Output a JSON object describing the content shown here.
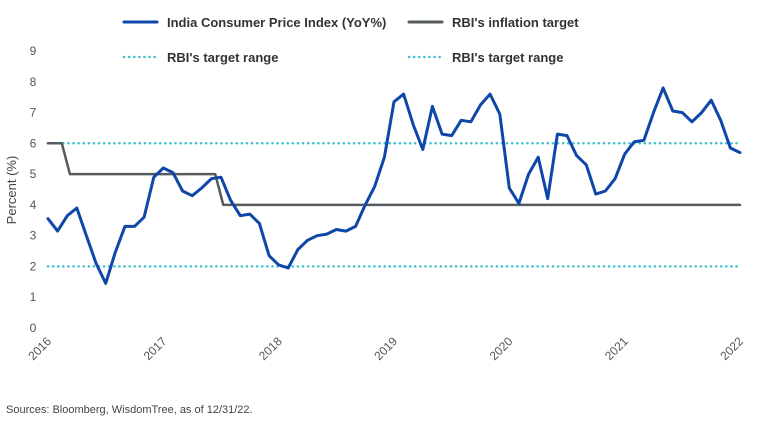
{
  "chart_data": {
    "type": "line",
    "title": "",
    "xlabel": "",
    "ylabel": "Percent (%)",
    "ylim": [
      0,
      9
    ],
    "yticks": [
      0,
      1,
      2,
      3,
      4,
      5,
      6,
      7,
      8,
      9
    ],
    "xlim": [
      2016,
      2022
    ],
    "xticks": [
      "2016",
      "2017",
      "2018",
      "2019",
      "2020",
      "2021",
      "2022"
    ],
    "grid": false,
    "legend_position": "top",
    "legend": [
      {
        "label": "India Consumer Price Index (YoY%)",
        "style": "solid",
        "color": "#0f47a8"
      },
      {
        "label": "RBI's inflation target",
        "style": "solid",
        "color": "#555b5e"
      },
      {
        "label": "RBI's target range",
        "style": "dotted",
        "color": "#3ec1cf"
      },
      {
        "label": "RBI's target range",
        "style": "dotted",
        "color": "#3ec1cf"
      }
    ],
    "series": [
      {
        "color": "#0f47a8",
        "style": "solid",
        "x": [
          2016.0,
          2016.083,
          2016.167,
          2016.25,
          2016.333,
          2016.417,
          2016.5,
          2016.583,
          2016.667,
          2016.75,
          2016.833,
          2016.917,
          2017.0,
          2017.083,
          2017.167,
          2017.25,
          2017.333,
          2017.417,
          2017.5,
          2017.583,
          2017.667,
          2017.75,
          2017.833,
          2017.917,
          2018.0,
          2018.083,
          2018.167,
          2018.25,
          2018.333,
          2018.417,
          2018.5,
          2018.583,
          2018.667,
          2018.75,
          2018.833,
          2018.917,
          2019.0,
          2019.083,
          2019.167,
          2019.25,
          2019.333,
          2019.417,
          2019.5,
          2019.583,
          2019.667,
          2019.75,
          2019.833,
          2019.917,
          2020.0,
          2020.083,
          2020.167,
          2020.25,
          2020.333,
          2020.417,
          2020.5,
          2020.583,
          2020.667,
          2020.75,
          2020.833,
          2020.917,
          2021.0,
          2021.083,
          2021.167,
          2021.25,
          2021.333,
          2021.417,
          2021.5,
          2021.583,
          2021.667,
          2021.75,
          2021.833,
          2021.917,
          2022.0
        ],
        "values": [
          3.55,
          3.15,
          3.65,
          3.9,
          3.0,
          2.1,
          1.45,
          2.45,
          3.3,
          3.3,
          3.6,
          4.9,
          5.2,
          5.05,
          4.45,
          4.3,
          4.55,
          4.85,
          4.9,
          4.15,
          3.65,
          3.7,
          3.4,
          2.35,
          2.05,
          1.95,
          2.55,
          2.85,
          3.0,
          3.05,
          3.2,
          3.15,
          3.3,
          4.0,
          4.6,
          5.55,
          7.35,
          7.6,
          6.6,
          5.8,
          7.2,
          6.3,
          6.25,
          6.75,
          6.7,
          7.25,
          7.6,
          6.95,
          4.55,
          4.05,
          5.0,
          5.55,
          4.2,
          6.3,
          6.25,
          5.6,
          5.3,
          4.35,
          4.45,
          4.85,
          5.65,
          6.05,
          6.1,
          7.0,
          7.8,
          7.05,
          7.0,
          6.7,
          7.0,
          7.4,
          6.75,
          5.85,
          5.7
        ]
      },
      {
        "color": "#555b5e",
        "style": "solid",
        "x": [
          2016.0,
          2016.12,
          2016.19,
          2017.45,
          2017.52,
          2022.0
        ],
        "values": [
          6,
          6,
          5,
          5,
          4,
          4
        ]
      },
      {
        "color": "#3ec1cf",
        "style": "dotted",
        "x": [
          2016.0,
          2022.0
        ],
        "values": [
          6,
          6
        ]
      },
      {
        "color": "#3ec1cf",
        "style": "dotted",
        "x": [
          2016.0,
          2022.0
        ],
        "values": [
          2,
          2
        ]
      }
    ]
  },
  "source_note": "Sources: Bloomberg, WisdomTree, as of 12/31/22."
}
